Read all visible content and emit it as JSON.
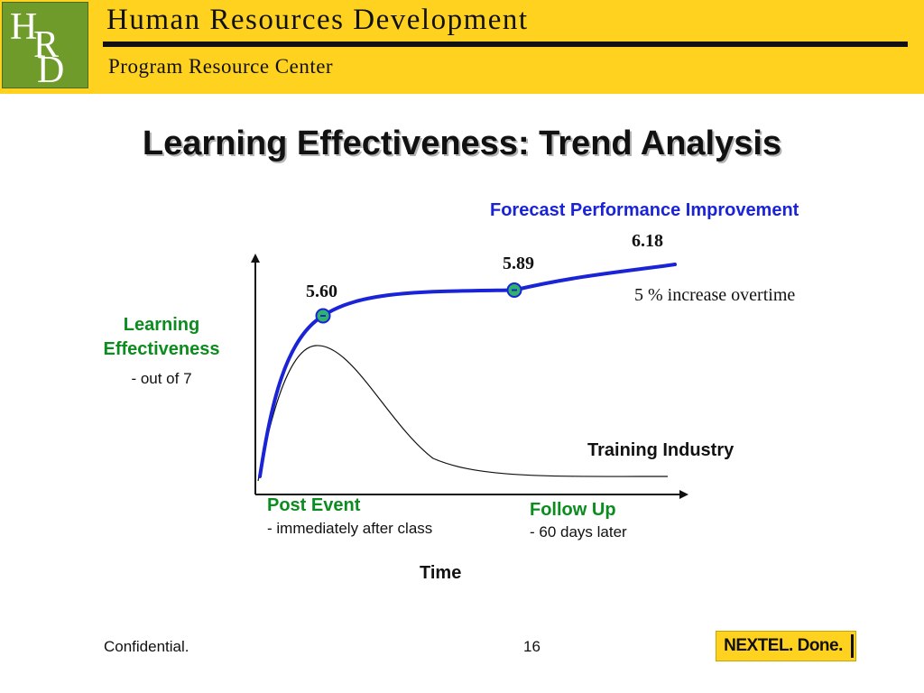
{
  "header": {
    "logo_letters": [
      "H",
      "R",
      "D"
    ],
    "title": "Human Resources Development",
    "subtitle": "Program Resource Center",
    "colors": {
      "band": "#ffd21f",
      "logo": "#6e9b2a"
    }
  },
  "slide_title": "Learning Effectiveness: Trend Analysis",
  "chart_data": {
    "type": "line",
    "title": "",
    "ylabel": "Learning Effectiveness",
    "ylabel_note": "- out of 7",
    "xlabel": "Time",
    "x_markers": [
      {
        "label": "Post Event",
        "note": "- immediately after class"
      },
      {
        "label": "Follow Up",
        "note": "- 60 days later"
      }
    ],
    "series": [
      {
        "name": "Forecast Performance Improvement",
        "color": "#1a24d6",
        "points": [
          {
            "x": "Post Event",
            "y": 5.6,
            "label": "5.60"
          },
          {
            "x": "Follow Up",
            "y": 5.89,
            "label": "5.89"
          },
          {
            "x": "end",
            "y": 6.18,
            "label": "6.18"
          }
        ]
      },
      {
        "name": "Training Industry",
        "color": "#111111",
        "shape": "rises to a peak shortly after the event, then decays to a low plateau"
      }
    ],
    "annotation": "5 % increase overtime",
    "grid": false,
    "axes": "unscaled arrows"
  },
  "footer": {
    "left": "Confidential.",
    "page": "16",
    "logo_text": "NEXTEL. Done."
  }
}
